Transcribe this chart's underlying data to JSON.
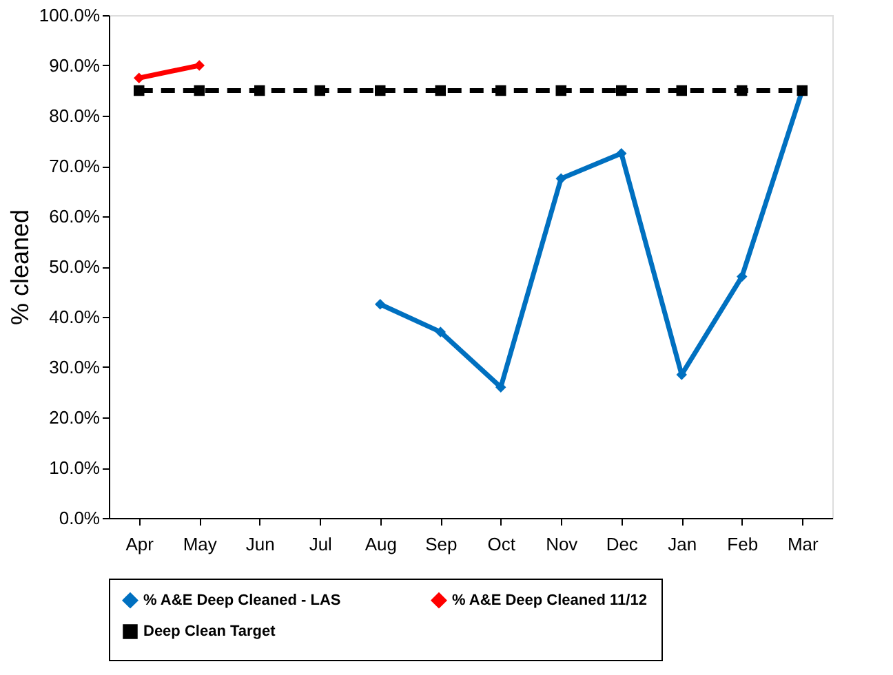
{
  "chart_data": {
    "type": "line",
    "ylabel": "% cleaned",
    "categories": [
      "Apr",
      "May",
      "Jun",
      "Jul",
      "Aug",
      "Sep",
      "Oct",
      "Nov",
      "Dec",
      "Jan",
      "Feb",
      "Mar"
    ],
    "series": [
      {
        "name": "% A&E Deep Cleaned - LAS",
        "color": "#0070c0",
        "marker": "diamond",
        "line_style": "solid",
        "values": [
          null,
          null,
          null,
          null,
          42.5,
          37,
          26,
          67.5,
          72.5,
          28.5,
          48,
          85
        ]
      },
      {
        "name": "% A&E Deep Cleaned 11/12",
        "color": "#ff0000",
        "marker": "diamond",
        "line_style": "solid",
        "values": [
          87.5,
          90,
          null,
          null,
          null,
          null,
          null,
          null,
          null,
          null,
          null,
          null
        ]
      },
      {
        "name": "Deep Clean Target",
        "color": "#000000",
        "marker": "square",
        "line_style": "dashed",
        "values": [
          85,
          85,
          85,
          85,
          85,
          85,
          85,
          85,
          85,
          85,
          85,
          85
        ]
      }
    ],
    "ylim": [
      0,
      100
    ],
    "yticks": [
      {
        "value": 0,
        "label": "0.0%"
      },
      {
        "value": 10,
        "label": "10.0%"
      },
      {
        "value": 20,
        "label": "20.0%"
      },
      {
        "value": 30,
        "label": "30.0%"
      },
      {
        "value": 40,
        "label": "40.0%"
      },
      {
        "value": 50,
        "label": "50.0%"
      },
      {
        "value": 60,
        "label": "60.0%"
      },
      {
        "value": 70,
        "label": "70.0%"
      },
      {
        "value": 80,
        "label": "80.0%"
      },
      {
        "value": 90,
        "label": "90.0%"
      },
      {
        "value": 100,
        "label": "100.0%"
      }
    ],
    "grid": false,
    "legend": "bottom"
  }
}
